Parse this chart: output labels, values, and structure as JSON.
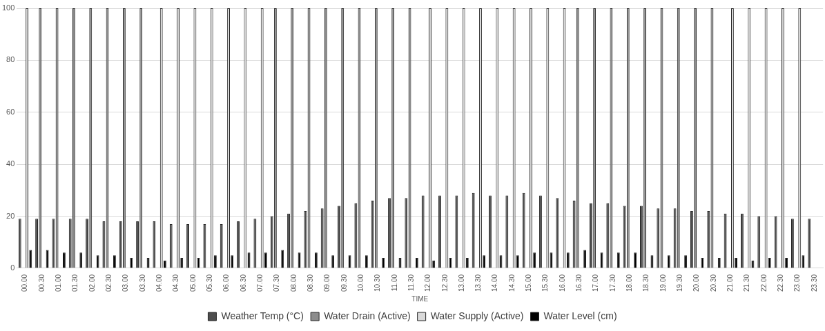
{
  "chart_data": {
    "type": "bar",
    "xlabel": "TIME",
    "categories": [
      "00.00",
      "00.30",
      "01.00",
      "01.30",
      "02.00",
      "02.30",
      "03.00",
      "03.30",
      "04.00",
      "04.30",
      "05.00",
      "05.30",
      "06.00",
      "06.30",
      "07.00",
      "07.30",
      "08.00",
      "08.30",
      "09.00",
      "09.30",
      "10.00",
      "10.30",
      "11.00",
      "11.30",
      "12.00",
      "12.30",
      "13.00",
      "13.30",
      "14.00",
      "14.30",
      "15.00",
      "15.30",
      "16.00",
      "16.30",
      "17.00",
      "17.30",
      "18.00",
      "18.30",
      "19.00",
      "19.30",
      "20.00",
      "20.30",
      "21.00",
      "21.30",
      "22.00",
      "22.30",
      "23.00",
      "23.30"
    ],
    "series": [
      {
        "name": "Weather Temp (°C)",
        "color": "#4d4d4d",
        "values": [
          19,
          19,
          19,
          19,
          19,
          18,
          18,
          18,
          18,
          17,
          17,
          17,
          17,
          18,
          19,
          20,
          21,
          22,
          23,
          24,
          25,
          26,
          27,
          27,
          28,
          28,
          28,
          29,
          28,
          28,
          29,
          28,
          27,
          26,
          25,
          25,
          24,
          24,
          23,
          23,
          22,
          22,
          21,
          21,
          20,
          20,
          19,
          19
        ]
      },
      {
        "name": "Water Drain (Active)",
        "color": "#8c8c8c",
        "values": [
          0,
          100,
          100,
          100,
          100,
          100,
          100,
          100,
          0,
          0,
          0,
          0,
          0,
          0,
          0,
          100,
          100,
          100,
          100,
          100,
          100,
          100,
          100,
          100,
          0,
          0,
          0,
          0,
          0,
          0,
          0,
          0,
          0,
          100,
          100,
          100,
          100,
          100,
          100,
          100,
          100,
          100,
          0,
          0,
          0,
          0,
          0,
          null
        ]
      },
      {
        "name": "Water Supply (Active)",
        "color": "#d9d9d9",
        "values": [
          100,
          0,
          0,
          0,
          0,
          0,
          0,
          0,
          100,
          100,
          100,
          100,
          100,
          100,
          100,
          0,
          0,
          0,
          0,
          0,
          0,
          0,
          0,
          0,
          100,
          100,
          100,
          100,
          100,
          100,
          100,
          100,
          100,
          0,
          0,
          0,
          0,
          0,
          0,
          0,
          0,
          0,
          100,
          100,
          100,
          100,
          100,
          null
        ]
      },
      {
        "name": "Water Level (cm)",
        "color": "#000000",
        "values": [
          7,
          7,
          6,
          6,
          5,
          5,
          4,
          4,
          3,
          4,
          4,
          5,
          5,
          6,
          6,
          7,
          6,
          6,
          5,
          5,
          5,
          4,
          4,
          4,
          3,
          4,
          4,
          5,
          5,
          5,
          6,
          6,
          6,
          7,
          6,
          6,
          6,
          5,
          5,
          5,
          4,
          4,
          4,
          3,
          4,
          4,
          5,
          null
        ]
      }
    ],
    "ylim": [
      0,
      100
    ],
    "yticks": [
      0,
      20,
      40,
      60,
      80,
      100
    ],
    "grid": "y",
    "legend": "bottom"
  }
}
